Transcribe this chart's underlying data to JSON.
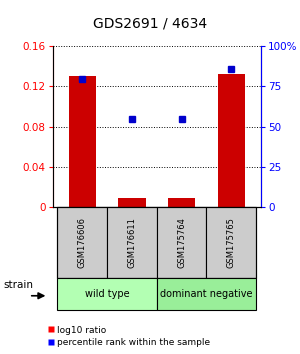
{
  "title": "GDS2691 / 4634",
  "samples": [
    "GSM176606",
    "GSM176611",
    "GSM175764",
    "GSM175765"
  ],
  "log10_ratio": [
    0.13,
    0.009,
    0.009,
    0.132
  ],
  "percentile_rank": [
    0.795,
    0.545,
    0.545,
    0.855
  ],
  "groups": [
    {
      "label": "wild type",
      "color": "#b3ffb3",
      "indices": [
        0,
        1
      ]
    },
    {
      "label": "dominant negative",
      "color": "#99ee99",
      "indices": [
        2,
        3
      ]
    }
  ],
  "group_label": "strain",
  "ylim_left": [
    0,
    0.16
  ],
  "ylim_right": [
    0,
    1.0
  ],
  "yticks_left": [
    0,
    0.04,
    0.08,
    0.12,
    0.16
  ],
  "ytick_labels_left": [
    "0",
    "0.04",
    "0.08",
    "0.12",
    "0.16"
  ],
  "yticks_right": [
    0,
    0.25,
    0.5,
    0.75,
    1.0
  ],
  "ytick_labels_right": [
    "0",
    "25",
    "50",
    "75",
    "100%"
  ],
  "bar_color": "#cc0000",
  "dot_color": "#0000cc",
  "bar_width": 0.55,
  "sample_box_color": "#cccccc",
  "legend_bar_label": "log10 ratio",
  "legend_dot_label": "percentile rank within the sample",
  "title_fontsize": 10,
  "tick_fontsize": 7.5,
  "sample_fontsize": 6,
  "group_fontsize": 7,
  "legend_fontsize": 6.5
}
